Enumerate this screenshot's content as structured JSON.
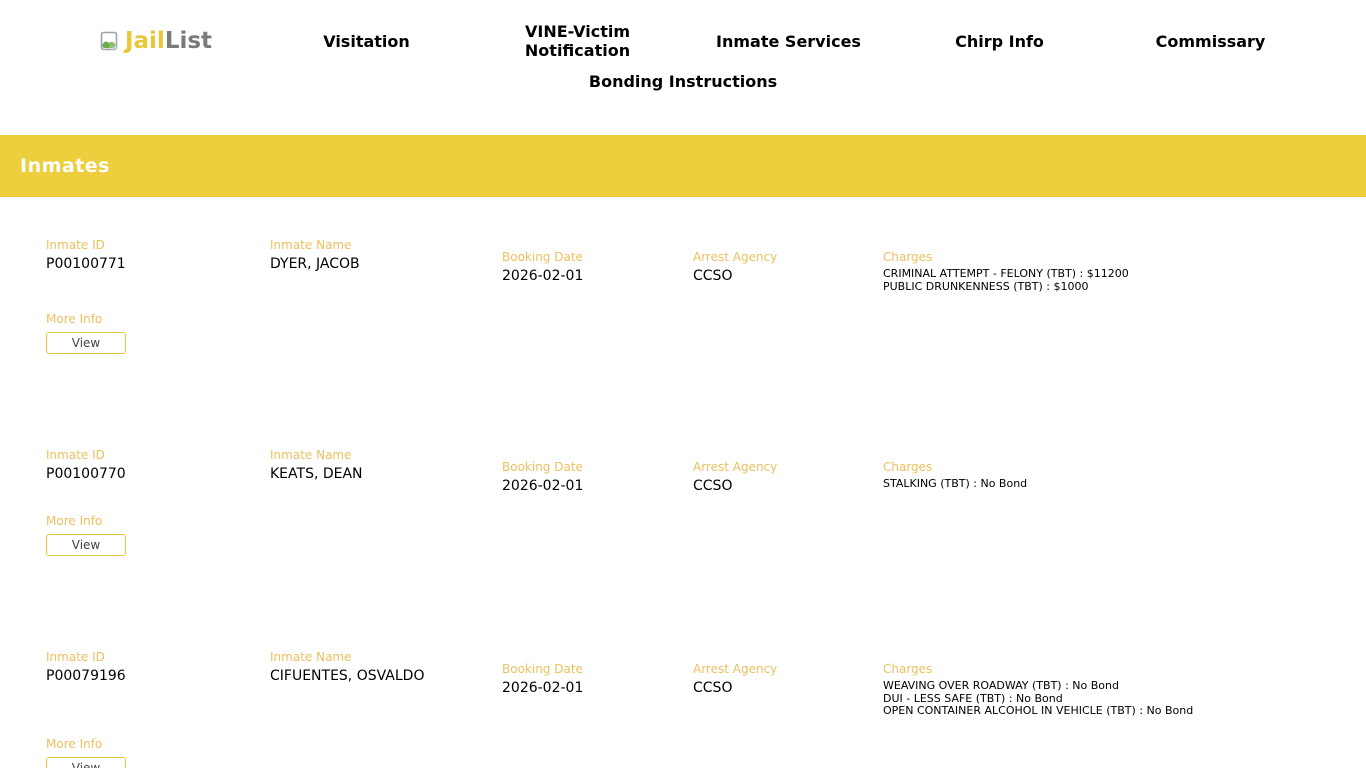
{
  "brand": {
    "part1": "Jail",
    "part2": "List",
    "icon": "document-page-icon"
  },
  "nav": {
    "items": [
      {
        "label": "Visitation"
      },
      {
        "label": "VINE-Victim Notification"
      },
      {
        "label": "Inmate Services"
      },
      {
        "label": "Chirp Info"
      },
      {
        "label": "Commissary"
      },
      {
        "label": "Bonding Instructions"
      }
    ]
  },
  "banner": {
    "title": "Inmates"
  },
  "labels": {
    "inmate_id": "Inmate ID",
    "inmate_name": "Inmate Name",
    "booking_date": "Booking Date",
    "arrest_agency": "Arrest Agency",
    "charges": "Charges",
    "more_info": "More Info",
    "view_button": "View"
  },
  "colors": {
    "accent_yellow": "#edce3c",
    "label_gold": "#edc05e",
    "brand_gray": "#7a7a7a",
    "logo_green": "#6fa84f"
  },
  "inmates": [
    {
      "id": "P00100771",
      "name": "DYER, JACOB",
      "booking_date": "2026-02-01",
      "arrest_agency": "CCSO",
      "charges": [
        "CRIMINAL ATTEMPT - FELONY (TBT) : $11200",
        "PUBLIC DRUNKENNESS (TBT) : $1000"
      ]
    },
    {
      "id": "P00100770",
      "name": "KEATS, DEAN",
      "booking_date": "2026-02-01",
      "arrest_agency": "CCSO",
      "charges": [
        "STALKING (TBT) : No Bond"
      ]
    },
    {
      "id": "P00079196",
      "name": "CIFUENTES, OSVALDO",
      "booking_date": "2026-02-01",
      "arrest_agency": "CCSO",
      "charges": [
        "WEAVING OVER ROADWAY (TBT) : No Bond",
        "DUI - LESS SAFE (TBT) : No Bond",
        "OPEN CONTAINER ALCOHOL IN VEHICLE (TBT) : No Bond"
      ]
    }
  ]
}
